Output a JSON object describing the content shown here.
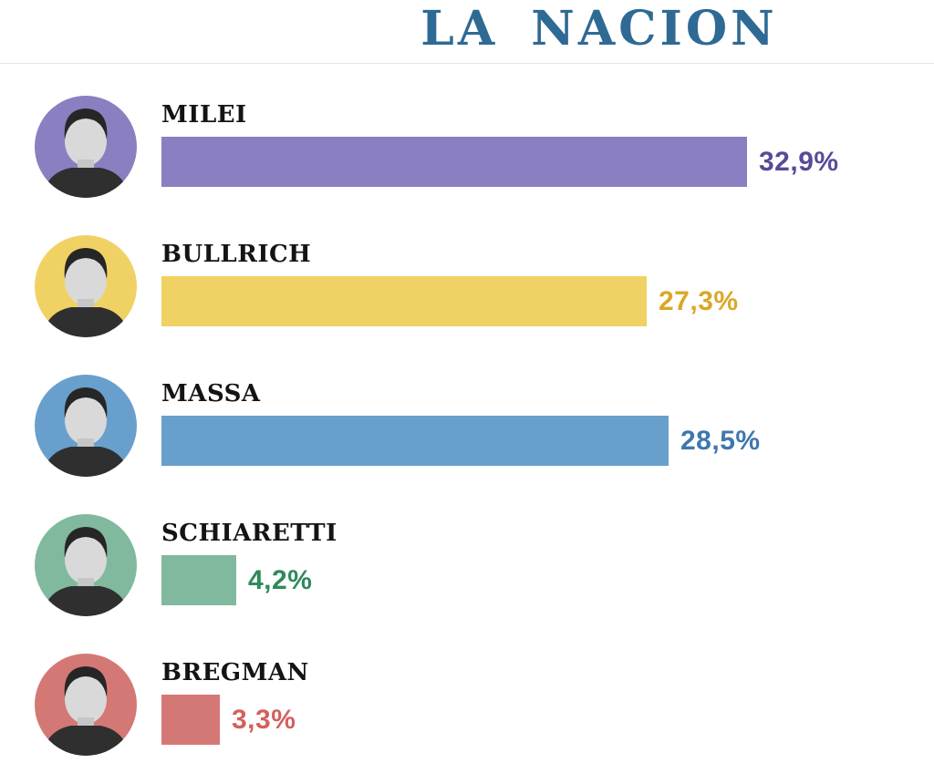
{
  "masthead": {
    "title": "LA NACION",
    "color": "#2e6a94"
  },
  "chart_data": {
    "type": "bar",
    "orientation": "horizontal",
    "title": "LA NACION",
    "xlabel": "",
    "ylabel": "",
    "xlim": [
      0,
      35
    ],
    "grid": false,
    "legend": "none",
    "value_suffix": "%",
    "decimal_separator": ",",
    "categories": [
      "MILEI",
      "BULLRICH",
      "MASSA",
      "SCHIARETTI",
      "BREGMAN"
    ],
    "values": [
      32.9,
      27.3,
      28.5,
      4.2,
      3.3
    ],
    "value_labels": [
      "32,9%",
      "27,3%",
      "28,5%",
      "4,2%",
      "3,3%"
    ],
    "bar_colors": [
      "#8a7fc0",
      "#f0d264",
      "#699fcd",
      "#80b99d",
      "#d47876"
    ],
    "value_label_colors": [
      "#564a9a",
      "#d9a827",
      "#4077ad",
      "#2e8a5a",
      "#d3605e"
    ],
    "avatar_bg_colors": [
      "#8a7fc0",
      "#f0d264",
      "#699fcd",
      "#80b99d",
      "#d47876"
    ],
    "avatar_icons": [
      "portrait-photo-icon",
      "portrait-photo-icon",
      "portrait-photo-icon",
      "portrait-photo-icon",
      "portrait-photo-icon"
    ]
  }
}
